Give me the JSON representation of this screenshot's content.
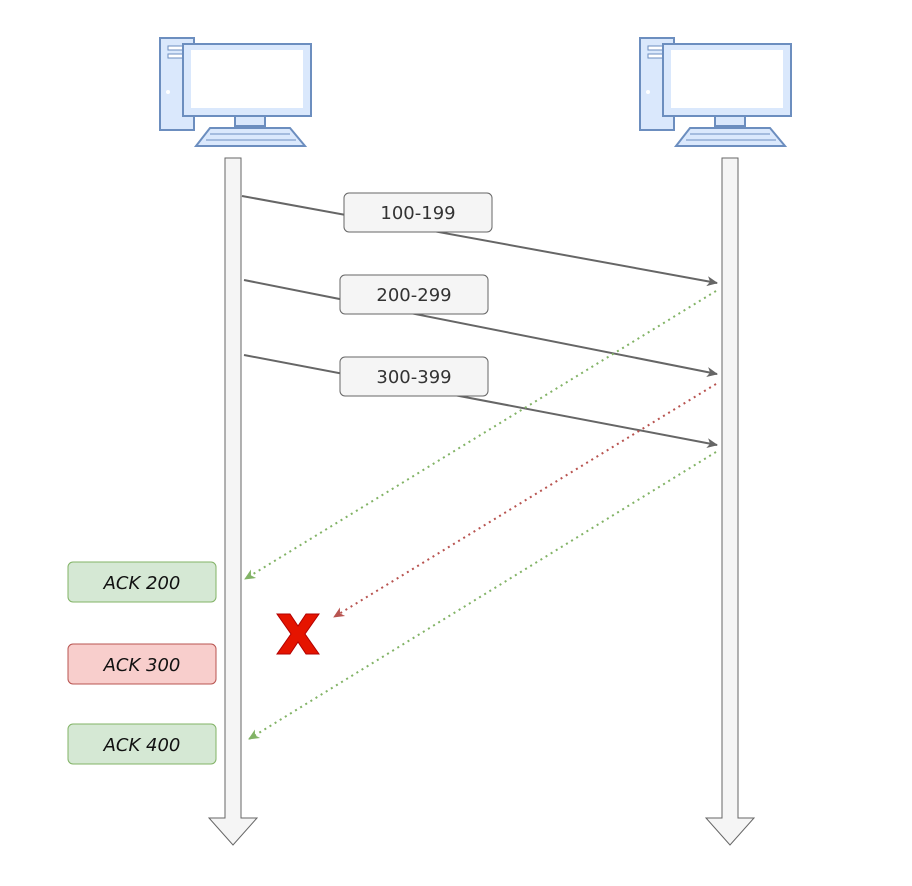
{
  "segments": [
    {
      "label": "100-199"
    },
    {
      "label": "200-299"
    },
    {
      "label": "300-399"
    }
  ],
  "acks": [
    {
      "label": "ACK 200",
      "status": "delivered"
    },
    {
      "label": "ACK 300",
      "status": "lost"
    },
    {
      "label": "ACK 400",
      "status": "delivered"
    }
  ],
  "colors": {
    "segment_line": "#666666",
    "ack_delivered": "#82b366",
    "ack_lost": "#b85450",
    "ack_delivered_fill": "#d5e8d4",
    "ack_lost_fill": "#f8cecc",
    "lost_mark": "#e51400",
    "timeline_fill": "#f5f5f5",
    "timeline_stroke": "#666666",
    "computer_fill": "#dae8fc",
    "computer_stroke": "#6c8ebf"
  },
  "icons": {
    "sender": "computer-icon",
    "receiver": "computer-icon",
    "lost": "x-mark-icon"
  }
}
